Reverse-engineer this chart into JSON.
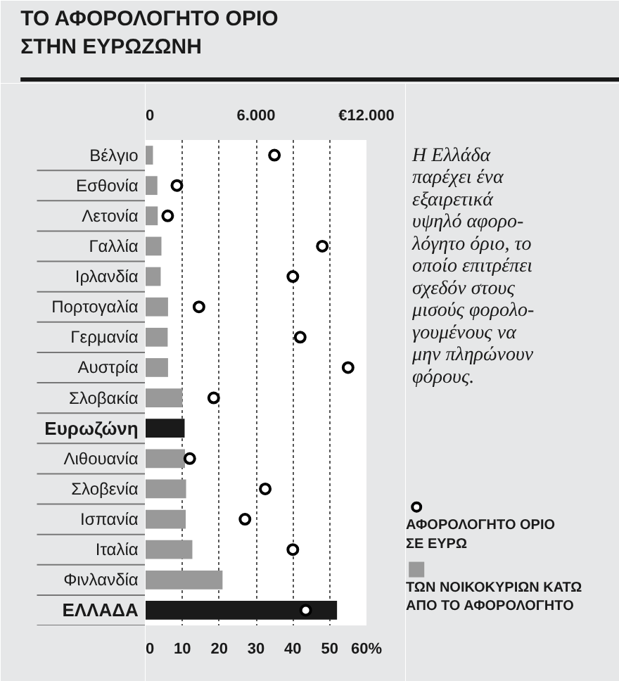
{
  "chart_data": {
    "type": "bar",
    "orientation": "horizontal",
    "title": "ΤΟ ΑΦΟΡΟΛΟΓΗΤΟ ΟΡΙΟ\nΣΤΗΝ ΕΥΡΩΖΩΝΗ",
    "categories": [
      "Βέλγιο",
      "Εσθονία",
      "Λετονία",
      "Γαλλία",
      "Ιρλανδία",
      "Πορτογαλία",
      "Γερμανία",
      "Αυστρία",
      "Σλοβακία",
      "Ευρωζώνη",
      "Λιθουανία",
      "Σλοβενία",
      "Ισπανία",
      "Ιταλία",
      "Φινλανδία",
      "ΕΛΛΑΔΑ"
    ],
    "series": [
      {
        "name": "ΤΩΝ ΝΟΙΚΟΚΥΡΙΩΝ ΚΑΤΩ\nΑΠΟ ΤΟ ΑΦΟΡΟΛΟΓΗΤΟ",
        "color": "#999999",
        "colors": [
          "#999999",
          "#999999",
          "#999999",
          "#999999",
          "#999999",
          "#999999",
          "#999999",
          "#999999",
          "#999999",
          "#1a1a1a",
          "#999999",
          "#999999",
          "#999999",
          "#999999",
          "#999999",
          "#1a1a1a"
        ],
        "values": [
          2.0,
          3.2,
          3.3,
          4.3,
          4.1,
          6.1,
          6.0,
          6.1,
          10.0,
          10.6,
          10.7,
          11.0,
          10.9,
          12.7,
          20.9,
          52.0
        ]
      },
      {
        "type": "scatter",
        "axis": "x2",
        "name": "ΑΦΟΡΟΛΟΓΗΤΟ ΟΡΙΟ\nΣΕ ΕΥΡΩ",
        "color": "#000000",
        "marker": "circle",
        "values": [
          7000,
          1700,
          1200,
          9600,
          8000,
          2900,
          8400,
          11000,
          3700,
          null,
          2400,
          6500,
          5400,
          8000,
          null,
          8700
        ]
      }
    ],
    "xlim": [
      0,
      60
    ],
    "xticks": [
      0,
      10,
      20,
      30,
      40,
      50,
      {
        "value": 60,
        "label": "60%"
      }
    ],
    "x2lim": [
      0,
      12000
    ],
    "x2ticks": [
      0,
      {
        "value": 6000,
        "label": "6.000"
      },
      {
        "value": 12000,
        "label": "€12.000"
      }
    ],
    "grid": "x",
    "legend": "bottom right",
    "annotations": [
      "Η Ελλάδα\nπαρέχει ένα\nεξαιρετικά\nυψηλό αφορο-\nλόγητο όριο, το\nοποίο επιτρέπει\nσχεδόν στους\nμισούς φορολο-\nγουμένους να\nμην πληρώνουν\nφόρους."
    ]
  }
}
